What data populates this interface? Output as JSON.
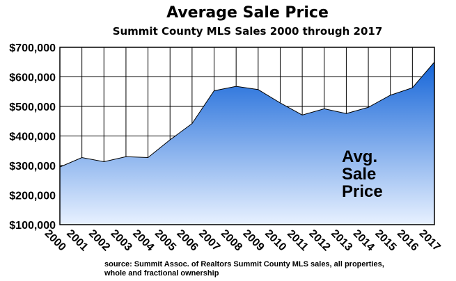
{
  "title": "Average Sale Price",
  "subtitle": "Summit County MLS Sales 2000 through 2017",
  "source_lines": [
    "source: Summit Assoc. of Realtors Summit County MLS sales, all properties,",
    "whole and fractional ownership"
  ],
  "chart_data": {
    "type": "area",
    "title": "Average Sale Price",
    "subtitle": "Summit County MLS Sales 2000 through 2017",
    "x": [
      "2000",
      "2001",
      "2002",
      "2003",
      "2004",
      "2005",
      "2006",
      "2007",
      "2008",
      "2009",
      "2010",
      "2011",
      "2012",
      "2013",
      "2014",
      "2015",
      "2016",
      "2017"
    ],
    "values": [
      295000,
      327000,
      313000,
      330000,
      327000,
      387000,
      442000,
      553000,
      568000,
      557000,
      512000,
      471000,
      492000,
      476000,
      497000,
      538000,
      563000,
      650000
    ],
    "ylim": [
      100000,
      700000
    ],
    "yticks": [
      100000,
      200000,
      300000,
      400000,
      500000,
      600000,
      700000
    ],
    "ytick_labels": [
      "$100,000",
      "$200,000",
      "$300,000",
      "$400,000",
      "$500,000",
      "$600,000",
      "$700,000"
    ],
    "annotation_lines": [
      "Avg.",
      "Sale",
      "Price"
    ],
    "grid": true,
    "colors": {
      "fill_top": "#1565d8",
      "fill_bottom": "#e8f1ff",
      "grid": "#000000"
    }
  }
}
